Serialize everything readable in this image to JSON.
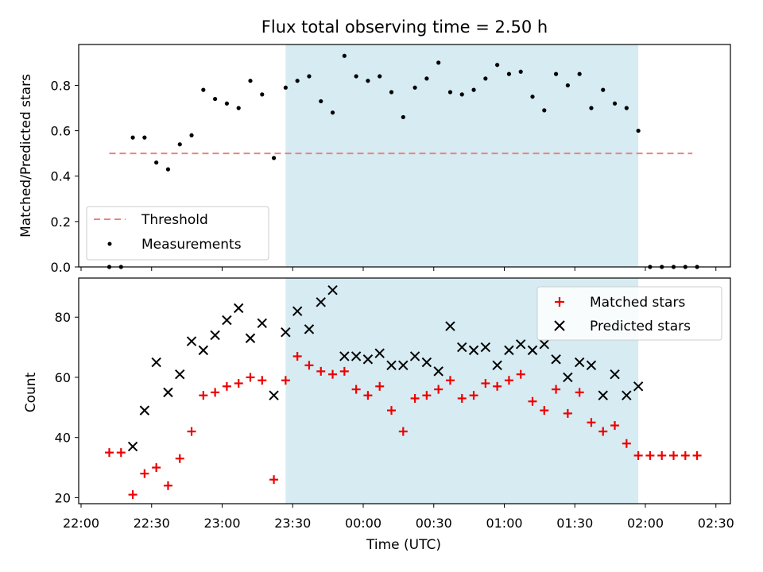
{
  "title": "Flux total observing time = 2.50 h",
  "chart_data": [
    {
      "type": "scatter",
      "panel": "top",
      "ylabel": "Matched/Predicted stars",
      "ylim": [
        0,
        0.98
      ],
      "yticks": [
        "0.0",
        "0.2",
        "0.4",
        "0.6",
        "0.8"
      ],
      "grid": false,
      "legend_position": "lower-left",
      "threshold": {
        "name": "Threshold",
        "value": 0.5,
        "x_start": "22:12",
        "x_end": "02:20",
        "color": "#f08080"
      },
      "series": [
        {
          "name": "Measurements",
          "color": "#000000",
          "marker": "dot",
          "x": [
            "22:12",
            "22:17",
            "22:22",
            "22:27",
            "22:32",
            "22:37",
            "22:42",
            "22:47",
            "22:52",
            "22:57",
            "23:02",
            "23:07",
            "23:12",
            "23:17",
            "23:22",
            "23:27",
            "23:32",
            "23:37",
            "23:42",
            "23:47",
            "23:52",
            "23:57",
            "00:02",
            "00:07",
            "00:12",
            "00:17",
            "00:22",
            "00:27",
            "00:32",
            "00:37",
            "00:42",
            "00:47",
            "00:52",
            "00:57",
            "01:02",
            "01:07",
            "01:12",
            "01:17",
            "01:22",
            "01:27",
            "01:32",
            "01:37",
            "01:42",
            "01:47",
            "01:52",
            "01:57",
            "02:02",
            "02:07",
            "02:12",
            "02:17",
            "02:22"
          ],
          "y": [
            0.0,
            0.0,
            0.57,
            0.57,
            0.46,
            0.43,
            0.54,
            0.58,
            0.78,
            0.74,
            0.72,
            0.7,
            0.82,
            0.76,
            0.48,
            0.79,
            0.82,
            0.84,
            0.73,
            0.68,
            0.93,
            0.84,
            0.82,
            0.84,
            0.77,
            0.66,
            0.79,
            0.83,
            0.9,
            0.77,
            0.76,
            0.78,
            0.83,
            0.89,
            0.85,
            0.86,
            0.75,
            0.69,
            0.85,
            0.8,
            0.85,
            0.7,
            0.78,
            0.72,
            0.7,
            0.6,
            0.0,
            0.0,
            0.0,
            0.0,
            0.0
          ]
        }
      ]
    },
    {
      "type": "scatter",
      "panel": "bottom",
      "xlabel": "Time (UTC)",
      "ylabel": "Count",
      "ylim": [
        18,
        93
      ],
      "yticks": [
        "20",
        "40",
        "60",
        "80"
      ],
      "xticks": [
        "22:00",
        "22:30",
        "23:00",
        "23:30",
        "00:00",
        "00:30",
        "01:00",
        "01:30",
        "02:00",
        "02:30"
      ],
      "grid": false,
      "legend_position": "upper-right",
      "series": [
        {
          "name": "Matched stars",
          "color": "#ee0000",
          "marker": "plus",
          "x": [
            "22:12",
            "22:17",
            "22:22",
            "22:27",
            "22:32",
            "22:37",
            "22:42",
            "22:47",
            "22:52",
            "22:57",
            "23:02",
            "23:07",
            "23:12",
            "23:17",
            "23:22",
            "23:27",
            "23:32",
            "23:37",
            "23:42",
            "23:47",
            "23:52",
            "23:57",
            "00:02",
            "00:07",
            "00:12",
            "00:17",
            "00:22",
            "00:27",
            "00:32",
            "00:37",
            "00:42",
            "00:47",
            "00:52",
            "00:57",
            "01:02",
            "01:07",
            "01:12",
            "01:17",
            "01:22",
            "01:27",
            "01:32",
            "01:37",
            "01:42",
            "01:47",
            "01:52",
            "01:57",
            "02:02",
            "02:07",
            "02:12",
            "02:17",
            "02:22"
          ],
          "y": [
            35,
            35,
            21,
            28,
            30,
            24,
            33,
            42,
            54,
            55,
            57,
            58,
            60,
            59,
            26,
            59,
            67,
            64,
            62,
            61,
            62,
            56,
            54,
            57,
            49,
            42,
            53,
            54,
            56,
            59,
            53,
            54,
            58,
            57,
            59,
            61,
            52,
            49,
            56,
            48,
            55,
            45,
            42,
            44,
            38,
            34,
            34,
            34,
            34,
            34,
            34
          ]
        },
        {
          "name": "Predicted stars",
          "color": "#000000",
          "marker": "x",
          "x": [
            "22:22",
            "22:27",
            "22:32",
            "22:37",
            "22:42",
            "22:47",
            "22:52",
            "22:57",
            "23:02",
            "23:07",
            "23:12",
            "23:17",
            "23:22",
            "23:27",
            "23:32",
            "23:37",
            "23:42",
            "23:47",
            "23:52",
            "23:57",
            "00:02",
            "00:07",
            "00:12",
            "00:17",
            "00:22",
            "00:27",
            "00:32",
            "00:37",
            "00:42",
            "00:47",
            "00:52",
            "00:57",
            "01:02",
            "01:07",
            "01:12",
            "01:17",
            "01:22",
            "01:27",
            "01:32",
            "01:37",
            "01:42",
            "01:47",
            "01:52",
            "01:57"
          ],
          "y": [
            37,
            49,
            65,
            55,
            61,
            72,
            69,
            74,
            79,
            83,
            73,
            78,
            54,
            75,
            82,
            76,
            85,
            89,
            67,
            67,
            66,
            68,
            64,
            64,
            67,
            65,
            62,
            77,
            70,
            69,
            70,
            64,
            69,
            71,
            69,
            71,
            66,
            60,
            65,
            64,
            54,
            61,
            54,
            57
          ]
        }
      ]
    }
  ],
  "shaded_window": {
    "start": "23:27",
    "end": "01:57",
    "color": "#add8e6",
    "opacity": 0.5
  }
}
